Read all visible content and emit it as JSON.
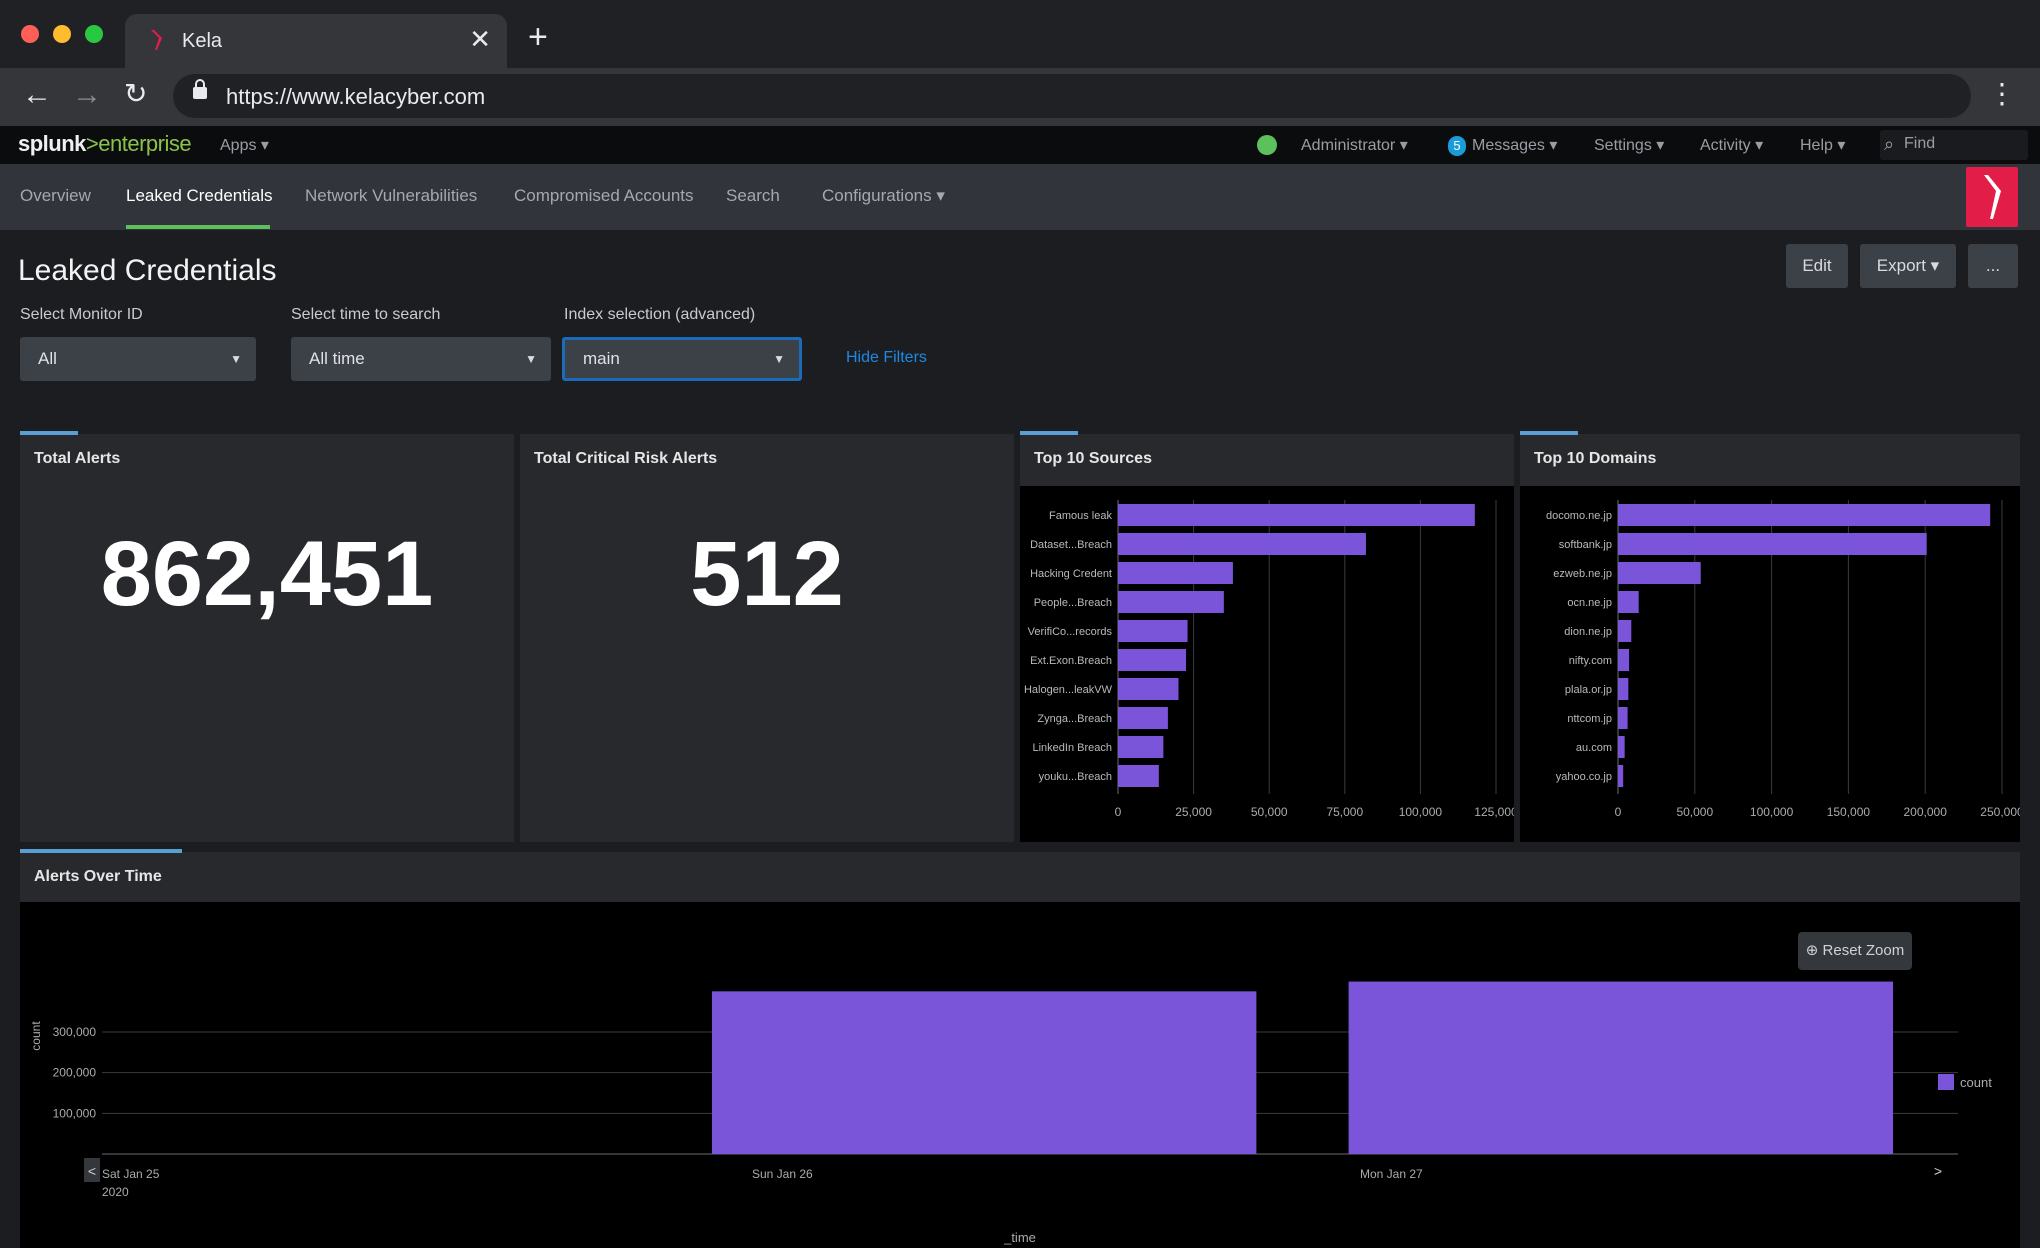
{
  "browser": {
    "tab_title": "Kela",
    "url": "https://www.kelacyber.com",
    "new_tab_glyph": "+",
    "close_glyph": "✕"
  },
  "splunk_bar": {
    "logo_main": "splunk",
    "logo_suffix": ">enterprise",
    "apps": "Apps ▾",
    "admin": "Administrator ▾",
    "messages_count": "5",
    "messages": "Messages ▾",
    "settings": "Settings ▾",
    "activity": "Activity ▾",
    "help": "Help ▾",
    "find": "Find"
  },
  "app_nav": {
    "tabs": [
      "Overview",
      "Leaked Credentials",
      "Network Vulnerabilities",
      "Compromised Accounts",
      "Search",
      "Configurations ▾"
    ],
    "active_index": 1
  },
  "dashboard": {
    "title": "Leaked Credentials",
    "edit": "Edit",
    "export": "Export ▾",
    "more": "..."
  },
  "filters": {
    "monitor_label": "Select Monitor ID",
    "monitor_value": "All",
    "time_label": "Select time to search",
    "time_value": "All time",
    "index_label": "Index selection (advanced)",
    "index_value": "main",
    "hide_filters": "Hide Filters"
  },
  "panels": {
    "total_alerts": {
      "title": "Total Alerts",
      "value": "862,451"
    },
    "critical_alerts": {
      "title": "Total Critical Risk Alerts",
      "value": "512"
    },
    "top_sources": {
      "title": "Top 10 Sources"
    },
    "top_domains": {
      "title": "Top 10 Domains"
    },
    "alerts_over_time": {
      "title": "Alerts Over Time",
      "reset_zoom": "⊕ Reset Zoom"
    }
  },
  "colors": {
    "bar": "#7b55d9",
    "accent": "#5a9fd4",
    "active_tab": "#5cc05c",
    "kela_red": "#e11d48"
  },
  "chart_data": [
    {
      "type": "bar",
      "orientation": "horizontal",
      "title": "Top 10 Sources",
      "categories": [
        "Famous leak",
        "Dataset...Breach",
        "Hacking Credent",
        "People...Breach",
        "VerifiCo...records",
        "Ext.Exon.Breach",
        "Halogen...leakVW",
        "Zynga...Breach",
        "LinkedIn Breach",
        "youku...Breach"
      ],
      "values": [
        118000,
        82000,
        38000,
        35000,
        23000,
        22500,
        20000,
        16500,
        15000,
        13500
      ],
      "xticks": [
        "0",
        "25,000",
        "50,000",
        "75,000",
        "100,000",
        "125,000"
      ],
      "xlim": [
        0,
        125000
      ]
    },
    {
      "type": "bar",
      "orientation": "horizontal",
      "title": "Top 10 Domains",
      "categories": [
        "docomo.ne.jp",
        "softbank.jp",
        "ezweb.ne.jp",
        "ocn.ne.jp",
        "dion.ne.jp",
        "nifty.com",
        "plala.or.jp",
        "nttcom.jp",
        "au.com",
        "yahoo.co.jp"
      ],
      "values": [
        252000,
        209000,
        56000,
        14000,
        9000,
        7500,
        7000,
        6500,
        4500,
        3500
      ],
      "xticks": [
        "0",
        "50,000",
        "100,000",
        "150,000",
        "200,000",
        "250,000"
      ],
      "xlim": [
        0,
        260000
      ]
    },
    {
      "type": "bar",
      "title": "Alerts Over Time",
      "xlabel": "_time",
      "ylabel": "count",
      "categories": [
        "Sat Jan 25 2020",
        "Sun Jan 26",
        "Mon Jan 27"
      ],
      "x_labels": [
        "Sat Jan 25",
        "Sun Jan 26",
        "Mon Jan 27"
      ],
      "x_sublabel": "2020",
      "values": [
        0,
        400000,
        424000
      ],
      "yticks": [
        "100,000",
        "200,000",
        "300,000"
      ],
      "ylim": [
        0,
        600000
      ],
      "series": [
        {
          "name": "count",
          "values": [
            0,
            400000,
            424000
          ]
        }
      ],
      "legend": "right"
    }
  ]
}
